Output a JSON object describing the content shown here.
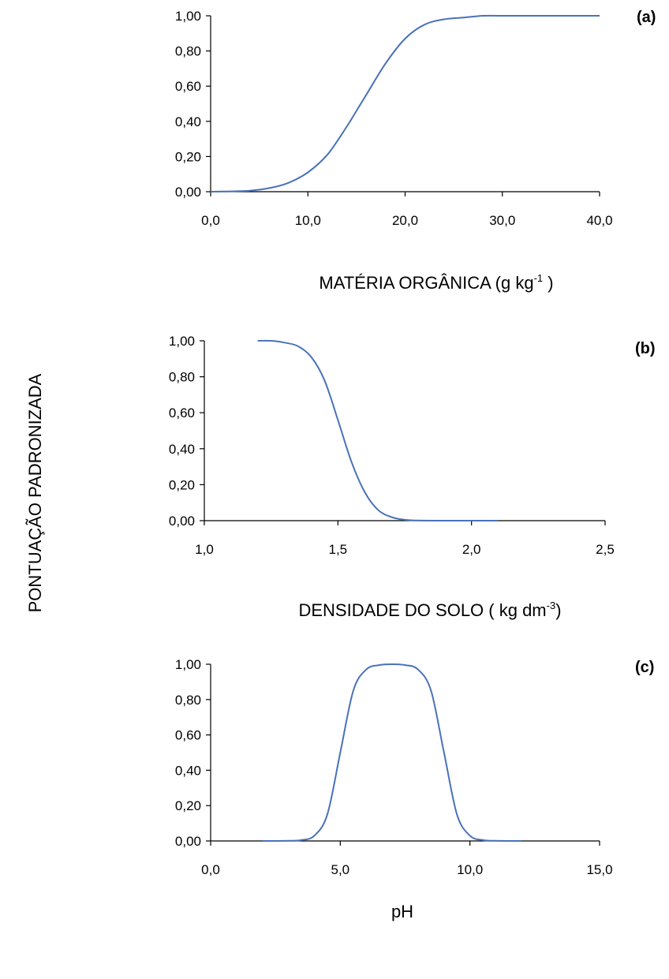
{
  "ylabel": "PONTUAÇÃO PADRONIZADA",
  "colors": {
    "curve": "#4a72b8"
  },
  "chart_data": [
    {
      "type": "line",
      "panel": "(a)",
      "xlabel": "MATÉRIA ORGÂNICA (g kg",
      "xlabel_sup": "-1",
      "xlabel_suffix": " )",
      "xlim": [
        0,
        40
      ],
      "ylim": [
        0,
        1
      ],
      "xticks": [
        "0,0",
        "10,0",
        "20,0",
        "30,0",
        "40,0"
      ],
      "yticks": [
        "0,00",
        "0,20",
        "0,40",
        "0,60",
        "0,80",
        "1,00"
      ],
      "series": [
        {
          "x": [
            0,
            2,
            4,
            6,
            8,
            10,
            12,
            14,
            15,
            16,
            18,
            20,
            22,
            24,
            26,
            28,
            30,
            35,
            40
          ],
          "y": [
            0,
            0.002,
            0.006,
            0.02,
            0.05,
            0.11,
            0.21,
            0.37,
            0.46,
            0.55,
            0.73,
            0.87,
            0.95,
            0.98,
            0.99,
            1.0,
            1.0,
            1.0,
            1.0
          ]
        }
      ]
    },
    {
      "type": "line",
      "panel": "(b)",
      "xlabel": "DENSIDADE DO SOLO ( kg dm",
      "xlabel_sup": "-3",
      "xlabel_suffix": ")",
      "xlim": [
        1,
        2.5
      ],
      "ylim": [
        0,
        1
      ],
      "xticks": [
        "1,0",
        "1,5",
        "2,0",
        "2,5"
      ],
      "yticks": [
        "0,00",
        "0,20",
        "0,40",
        "0,60",
        "0,80",
        "1,00"
      ],
      "series": [
        {
          "x": [
            1.2,
            1.25,
            1.3,
            1.35,
            1.4,
            1.45,
            1.5,
            1.55,
            1.6,
            1.65,
            1.7,
            1.75,
            1.8,
            1.9,
            2.0,
            2.1
          ],
          "y": [
            1.0,
            1.0,
            0.99,
            0.97,
            0.91,
            0.78,
            0.56,
            0.33,
            0.16,
            0.06,
            0.02,
            0.005,
            0.001,
            0,
            0,
            0
          ]
        }
      ]
    },
    {
      "type": "line",
      "panel": "(c)",
      "xlabel": "pH",
      "xlabel_sup": "",
      "xlabel_suffix": "",
      "xlim": [
        0,
        15
      ],
      "ylim": [
        0,
        1
      ],
      "xticks": [
        "0,0",
        "5,0",
        "10,0",
        "15,0"
      ],
      "yticks": [
        "0,00",
        "0,20",
        "0,40",
        "0,60",
        "0,80",
        "1,00"
      ],
      "series": [
        {
          "x": [
            2,
            3,
            3.5,
            4,
            4.5,
            5,
            5.5,
            6,
            6.5,
            7,
            7.5,
            8,
            8.5,
            9,
            9.5,
            10,
            10.5,
            11,
            12
          ],
          "y": [
            0,
            0.001,
            0.005,
            0.03,
            0.15,
            0.5,
            0.85,
            0.97,
            0.995,
            1.0,
            0.995,
            0.97,
            0.85,
            0.5,
            0.15,
            0.03,
            0.005,
            0.001,
            0
          ]
        }
      ]
    }
  ]
}
